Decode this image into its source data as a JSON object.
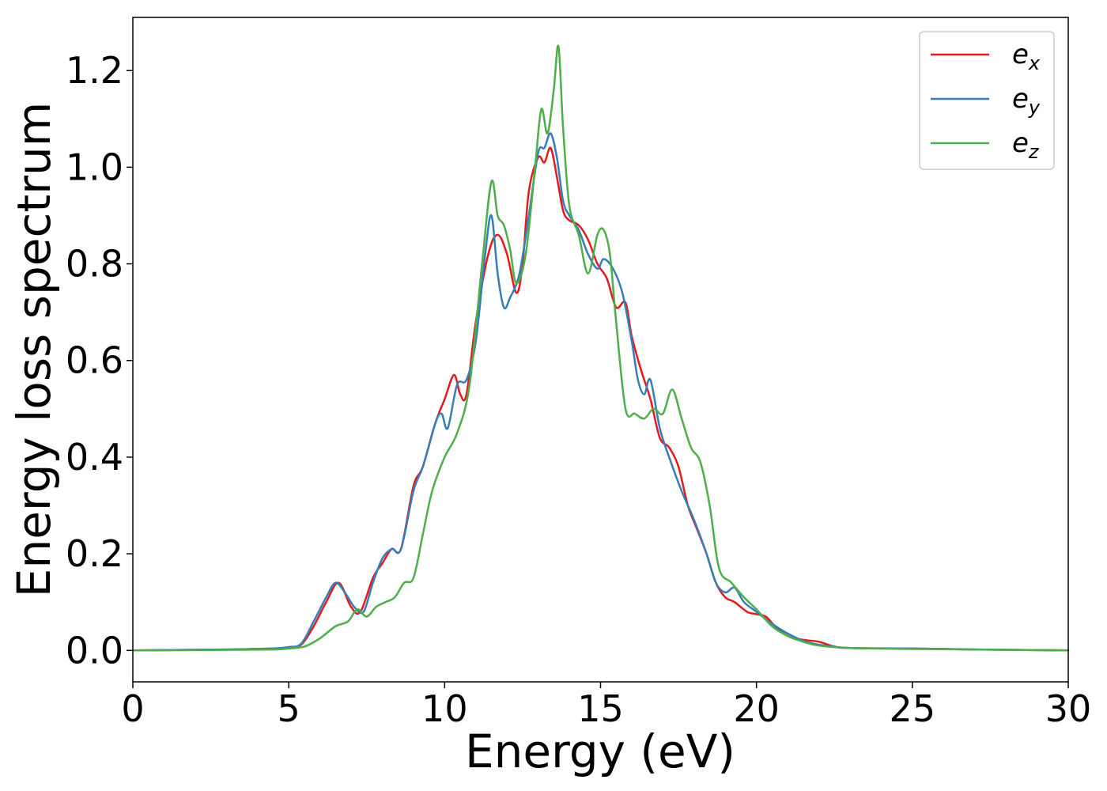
{
  "chart_data": {
    "type": "line",
    "xlabel": "Energy (eV)",
    "ylabel": "Energy loss spectrum",
    "xlim": [
      0,
      30
    ],
    "ylim": [
      -0.065,
      1.31
    ],
    "x_ticks": [
      0,
      5,
      10,
      15,
      20,
      25,
      30
    ],
    "x_tick_labels": [
      "0",
      "5",
      "10",
      "15",
      "20",
      "25",
      "30"
    ],
    "y_ticks": [
      0.0,
      0.2,
      0.4,
      0.6,
      0.8,
      1.0,
      1.2
    ],
    "y_tick_labels": [
      "0.0",
      "0.2",
      "0.4",
      "0.6",
      "0.8",
      "1.0",
      "1.2"
    ],
    "grid": false,
    "legend_position": "top-right",
    "series": [
      {
        "name": "e",
        "subscript": "x",
        "color": "#e41a1c",
        "x": [
          0,
          3,
          4.5,
          5.0,
          5.4,
          5.8,
          6.2,
          6.6,
          7.0,
          7.3,
          7.7,
          8.0,
          8.3,
          8.6,
          9.0,
          9.3,
          9.7,
          10.0,
          10.3,
          10.5,
          10.7,
          11.0,
          11.4,
          11.7,
          12.0,
          12.3,
          12.5,
          12.7,
          13.0,
          13.2,
          13.4,
          13.6,
          13.8,
          14.0,
          14.3,
          14.6,
          14.9,
          15.2,
          15.5,
          15.8,
          16.0,
          16.3,
          16.6,
          16.9,
          17.2,
          17.5,
          17.8,
          18.1,
          18.4,
          18.7,
          19.0,
          19.3,
          19.7,
          20.0,
          20.3,
          20.6,
          21.0,
          21.5,
          22.0,
          22.5,
          23,
          25,
          27,
          30
        ],
        "y": [
          0.0,
          0.002,
          0.004,
          0.006,
          0.012,
          0.05,
          0.1,
          0.14,
          0.09,
          0.08,
          0.15,
          0.18,
          0.21,
          0.21,
          0.34,
          0.38,
          0.47,
          0.52,
          0.57,
          0.53,
          0.53,
          0.68,
          0.82,
          0.86,
          0.82,
          0.74,
          0.8,
          0.95,
          1.02,
          1.01,
          1.04,
          0.98,
          0.91,
          0.89,
          0.88,
          0.85,
          0.8,
          0.77,
          0.71,
          0.72,
          0.65,
          0.58,
          0.52,
          0.44,
          0.42,
          0.38,
          0.3,
          0.25,
          0.2,
          0.14,
          0.11,
          0.1,
          0.08,
          0.075,
          0.07,
          0.05,
          0.03,
          0.022,
          0.018,
          0.008,
          0.005,
          0.004,
          0.002,
          0.0
        ]
      },
      {
        "name": "e",
        "subscript": "y",
        "color": "#377eb8",
        "x": [
          0,
          3,
          4.5,
          5.0,
          5.4,
          5.8,
          6.2,
          6.5,
          6.8,
          7.1,
          7.4,
          7.7,
          8.0,
          8.3,
          8.6,
          9.0,
          9.3,
          9.7,
          9.9,
          10.1,
          10.4,
          10.7,
          11.0,
          11.3,
          11.5,
          11.7,
          11.9,
          12.1,
          12.4,
          12.7,
          13.0,
          13.2,
          13.4,
          13.6,
          13.8,
          14.0,
          14.3,
          14.6,
          14.9,
          15.1,
          15.4,
          15.7,
          16.0,
          16.2,
          16.4,
          16.6,
          16.9,
          17.2,
          17.6,
          18.0,
          18.4,
          18.7,
          19.0,
          19.3,
          19.6,
          20.0,
          20.5,
          21.0,
          21.5,
          22.0,
          23,
          25,
          27,
          30
        ],
        "y": [
          0.0,
          0.002,
          0.004,
          0.007,
          0.014,
          0.06,
          0.11,
          0.14,
          0.12,
          0.09,
          0.08,
          0.14,
          0.19,
          0.21,
          0.21,
          0.33,
          0.38,
          0.47,
          0.49,
          0.46,
          0.55,
          0.56,
          0.64,
          0.82,
          0.9,
          0.78,
          0.71,
          0.73,
          0.78,
          0.9,
          1.03,
          1.04,
          1.07,
          1.02,
          0.93,
          0.9,
          0.87,
          0.82,
          0.79,
          0.81,
          0.79,
          0.74,
          0.64,
          0.56,
          0.53,
          0.56,
          0.46,
          0.4,
          0.33,
          0.27,
          0.2,
          0.14,
          0.12,
          0.13,
          0.1,
          0.08,
          0.055,
          0.035,
          0.02,
          0.012,
          0.005,
          0.004,
          0.002,
          0.0
        ]
      },
      {
        "name": "e",
        "subscript": "z",
        "color": "#4daf4a",
        "x": [
          0,
          3,
          4.5,
          5.0,
          5.5,
          6.0,
          6.5,
          6.9,
          7.2,
          7.5,
          7.8,
          8.1,
          8.4,
          8.7,
          9.0,
          9.3,
          9.6,
          10.0,
          10.4,
          10.8,
          11.2,
          11.5,
          11.7,
          11.9,
          12.1,
          12.3,
          12.6,
          12.9,
          13.1,
          13.3,
          13.5,
          13.65,
          13.8,
          14.0,
          14.3,
          14.6,
          14.9,
          15.1,
          15.3,
          15.5,
          15.8,
          16.1,
          16.4,
          16.7,
          17.0,
          17.3,
          17.6,
          17.9,
          18.2,
          18.5,
          18.8,
          19.2,
          19.6,
          20.0,
          20.5,
          21.0,
          21.5,
          22.0,
          23,
          25,
          27,
          30
        ],
        "y": [
          0.0,
          0.001,
          0.002,
          0.004,
          0.008,
          0.025,
          0.05,
          0.06,
          0.085,
          0.07,
          0.09,
          0.1,
          0.11,
          0.14,
          0.15,
          0.24,
          0.33,
          0.4,
          0.45,
          0.55,
          0.8,
          0.97,
          0.9,
          0.88,
          0.83,
          0.76,
          0.82,
          1.0,
          1.12,
          1.07,
          1.16,
          1.25,
          1.08,
          0.92,
          0.86,
          0.78,
          0.86,
          0.87,
          0.82,
          0.68,
          0.5,
          0.49,
          0.48,
          0.5,
          0.49,
          0.54,
          0.48,
          0.42,
          0.39,
          0.3,
          0.17,
          0.14,
          0.11,
          0.085,
          0.05,
          0.03,
          0.018,
          0.01,
          0.005,
          0.003,
          0.002,
          0.0
        ]
      }
    ]
  }
}
